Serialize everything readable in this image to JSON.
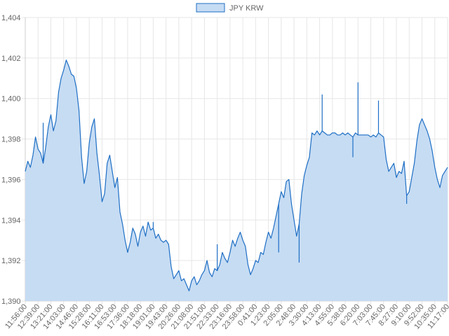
{
  "chart_data": {
    "type": "area",
    "legend": {
      "position": "top",
      "label": "JPY KRW"
    },
    "colors": {
      "line": "#1f6fc5",
      "fill": "#c6dcf3",
      "grid": "#e6e6e6",
      "tick_text": "#666666"
    },
    "grid": true,
    "ylim": [
      1390,
      1404
    ],
    "y_ticks": [
      "1,390",
      "1,392",
      "1,394",
      "1,396",
      "1,398",
      "1,400",
      "1,402",
      "1,404"
    ],
    "x_tick_labels": [
      "11:56:00",
      "12:39:00",
      "13:21:00",
      "14:03:00",
      "14:46:00",
      "15:28:00",
      "16:11:00",
      "16:53:00",
      "17:36:00",
      "18:18:00",
      "19:01:00",
      "19:43:00",
      "20:26:00",
      "21:08:00",
      "21:51:00",
      "22:33:00",
      "23:16:00",
      "23:58:00",
      "0:41:00",
      "1:23:00",
      "2:05:00",
      "2:48:00",
      "3:30:00",
      "4:13:00",
      "4:55:00",
      "5:38:00",
      "6:20:00",
      "7:03:00",
      "7:45:00",
      "8:27:00",
      "9:10:00",
      "9:52:00",
      "10:35:00",
      "11:17:00"
    ],
    "series": [
      {
        "name": "JPY KRW",
        "values": [
          1396.4,
          1396.9,
          1396.6,
          1397.2,
          1398.1,
          1397.5,
          1397.3,
          1396.8,
          1397.6,
          1398.6,
          1399.2,
          1398.4,
          1398.9,
          1400.3,
          1401.0,
          1401.4,
          1401.9,
          1401.6,
          1401.2,
          1401.1,
          1400.5,
          1399.4,
          1397.1,
          1395.8,
          1396.4,
          1397.8,
          1398.6,
          1399.0,
          1397.3,
          1396.2,
          1394.9,
          1395.3,
          1396.8,
          1397.2,
          1396.4,
          1395.6,
          1396.1,
          1394.4,
          1393.8,
          1393.0,
          1392.4,
          1392.9,
          1393.6,
          1393.3,
          1392.7,
          1393.4,
          1393.7,
          1393.2,
          1393.9,
          1393.5,
          1393.6,
          1393.1,
          1393.3,
          1393.0,
          1392.9,
          1393.0,
          1392.8,
          1391.7,
          1391.1,
          1391.3,
          1391.5,
          1391.0,
          1391.1,
          1390.8,
          1390.5,
          1391.0,
          1391.2,
          1390.8,
          1391.0,
          1391.3,
          1391.5,
          1392.0,
          1391.4,
          1391.2,
          1391.6,
          1391.5,
          1391.8,
          1392.4,
          1392.1,
          1391.9,
          1392.4,
          1393.0,
          1392.7,
          1393.1,
          1393.4,
          1393.0,
          1392.7,
          1391.8,
          1391.3,
          1391.6,
          1392.0,
          1391.9,
          1392.4,
          1392.3,
          1392.9,
          1393.4,
          1393.1,
          1393.6,
          1394.2,
          1394.8,
          1395.4,
          1395.1,
          1395.9,
          1396.0,
          1394.8,
          1394.0,
          1393.2,
          1393.8,
          1395.3,
          1396.2,
          1396.7,
          1397.1,
          1398.3,
          1398.2,
          1398.4,
          1398.2,
          1398.4,
          1398.3,
          1398.2,
          1398.2,
          1398.3,
          1398.3,
          1398.2,
          1398.2,
          1398.3,
          1398.2,
          1398.3,
          1398.2,
          1398.1,
          1398.3,
          1398.2,
          1398.2,
          1398.2,
          1398.2,
          1398.2,
          1398.1,
          1398.2,
          1398.1,
          1398.3,
          1398.2,
          1398.1,
          1397.0,
          1396.4,
          1396.6,
          1396.8,
          1396.1,
          1396.4,
          1396.3,
          1396.9,
          1395.2,
          1395.4,
          1396.1,
          1396.8,
          1397.9,
          1398.7,
          1399.0,
          1398.7,
          1398.4,
          1398.0,
          1397.4,
          1396.6,
          1396.0,
          1395.6,
          1396.2,
          1396.4,
          1396.6
        ]
      }
    ],
    "spikes": [
      {
        "index": 7,
        "value": 1398.8
      },
      {
        "index": 50,
        "value": 1393.9
      },
      {
        "index": 56,
        "value": 1392.8
      },
      {
        "index": 75,
        "value": 1392.8
      },
      {
        "index": 99,
        "value": 1392.4
      },
      {
        "index": 107,
        "value": 1391.9
      },
      {
        "index": 116,
        "value": 1400.2
      },
      {
        "index": 128,
        "value": 1397.1
      },
      {
        "index": 130,
        "value": 1400.8
      },
      {
        "index": 138,
        "value": 1399.9
      },
      {
        "index": 149,
        "value": 1394.8
      }
    ]
  }
}
